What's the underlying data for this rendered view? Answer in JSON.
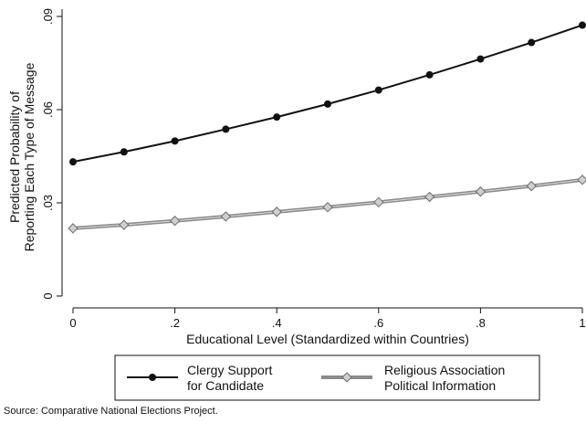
{
  "chart_data": {
    "type": "line",
    "title": "",
    "xlabel": "Educational Level (Standardized within Countries)",
    "ylabel_lines": [
      "Predicted Probability of",
      "Reporting Each Type of Message"
    ],
    "xlim": [
      0,
      1
    ],
    "ylim": [
      0,
      0.09
    ],
    "x_ticks": [
      0,
      0.2,
      0.4,
      0.6,
      0.8,
      1
    ],
    "x_tick_labels": [
      "0",
      ".2",
      ".4",
      ".6",
      ".8",
      "1"
    ],
    "y_ticks": [
      0,
      0.03,
      0.06,
      0.09
    ],
    "y_tick_labels": [
      "0",
      ".03",
      ".06",
      ".09"
    ],
    "grid": false,
    "legend_position": "bottom",
    "x": [
      0,
      0.1,
      0.2,
      0.3,
      0.4,
      0.5,
      0.6,
      0.7,
      0.8,
      0.9,
      1.0
    ],
    "series": [
      {
        "name_lines": [
          "Clergy Support",
          "for Candidate"
        ],
        "marker": "circle",
        "line_color": "#111111",
        "marker_color": "#111111",
        "values": [
          0.0432,
          0.0464,
          0.0499,
          0.0537,
          0.0576,
          0.0618,
          0.0663,
          0.0712,
          0.0763,
          0.0816,
          0.0872
        ]
      },
      {
        "name_lines": [
          "Religious Association",
          "Political Information"
        ],
        "marker": "diamond",
        "line_color": "#8a8a8a",
        "marker_color": "#8a8a8a",
        "values": [
          0.0218,
          0.0229,
          0.0242,
          0.0256,
          0.0271,
          0.0286,
          0.0302,
          0.0319,
          0.0336,
          0.0354,
          0.0374
        ]
      }
    ]
  },
  "source_note": "Source: Comparative National Elections Project."
}
